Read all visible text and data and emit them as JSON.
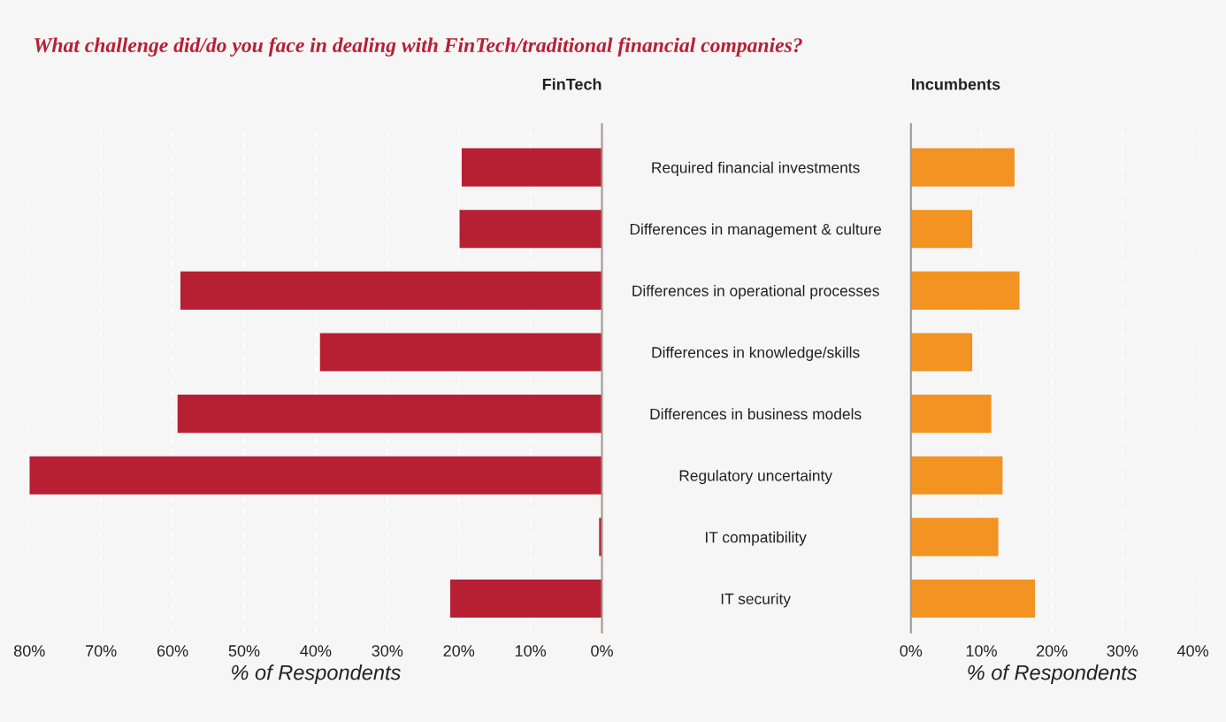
{
  "chart_data": [
    {
      "type": "bar",
      "orientation": "horizontal",
      "title": "What challenge did/do you face in dealing with FinTech/traditional financial companies?",
      "subtitle": "FinTech",
      "xlabel": "% of Respondents",
      "categories": [
        "Required financial investments",
        "Differences in management & culture",
        "Differences in operational processes",
        "Differences in knowledge/skills",
        "Differences in business models",
        "Regulatory uncertainty",
        "IT compatibility",
        "IT security"
      ],
      "values": [
        19.6,
        19.9,
        58.9,
        39.4,
        59.3,
        80,
        0.4,
        21.2
      ],
      "color": "#b71f33",
      "xlim": [
        80,
        0
      ],
      "xticks": [
        {
          "value": 80,
          "label": "80%"
        },
        {
          "value": 70,
          "label": "70%"
        },
        {
          "value": 60,
          "label": "60%"
        },
        {
          "value": 50,
          "label": "50%"
        },
        {
          "value": 40,
          "label": "40%"
        },
        {
          "value": 30,
          "label": "30%"
        },
        {
          "value": 20,
          "label": "20%"
        },
        {
          "value": 10,
          "label": "10%"
        },
        {
          "value": 0,
          "label": "0%"
        }
      ],
      "grid": "x"
    },
    {
      "type": "bar",
      "orientation": "horizontal",
      "title": "Incumbents",
      "xlabel": "% of Respondents",
      "categories": [
        null,
        null,
        null,
        null,
        null,
        null,
        null,
        null
      ],
      "values": [
        14.7,
        8.7,
        15.4,
        8.7,
        11.4,
        13.0,
        12.4,
        17.6
      ],
      "color": "#f39321",
      "xlim": [
        0,
        40
      ],
      "xticks": [
        {
          "value": 0,
          "label": "0%"
        },
        {
          "value": 10,
          "label": "10%"
        },
        {
          "value": 20,
          "label": "20%"
        },
        {
          "value": 30,
          "label": "30%"
        },
        {
          "value": 40,
          "label": "40%"
        }
      ],
      "grid": "x"
    }
  ]
}
